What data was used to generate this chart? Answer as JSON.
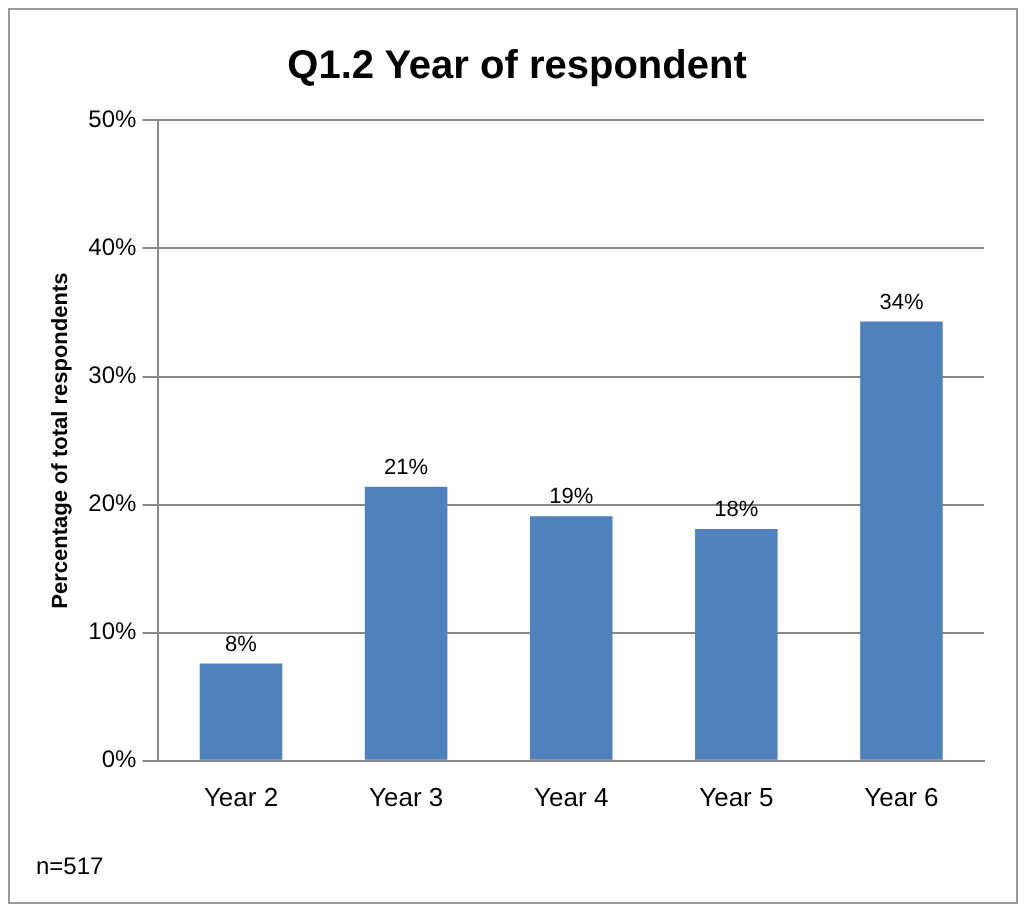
{
  "chart_data": {
    "type": "bar",
    "title": "Q1.2 Year of respondent",
    "ylabel": "Percentage of total respondents",
    "categories": [
      "Year 2",
      "Year 3",
      "Year 4",
      "Year 5",
      "Year 6"
    ],
    "values": [
      7.6,
      21.4,
      19.1,
      18.1,
      34.3
    ],
    "color": "#4f81bd",
    "value_labels": [
      "8%",
      "21%",
      "19%",
      "18%",
      "34%"
    ],
    "ylim": [
      0,
      50
    ],
    "yticks": [
      {
        "value": 0,
        "label": "0%"
      },
      {
        "value": 10,
        "label": "10%"
      },
      {
        "value": 20,
        "label": "20%"
      },
      {
        "value": 30,
        "label": "30%"
      },
      {
        "value": 40,
        "label": "40%"
      },
      {
        "value": 50,
        "label": "50%"
      }
    ],
    "grid": "y",
    "legend": false,
    "annotations": [
      "n=517"
    ]
  }
}
